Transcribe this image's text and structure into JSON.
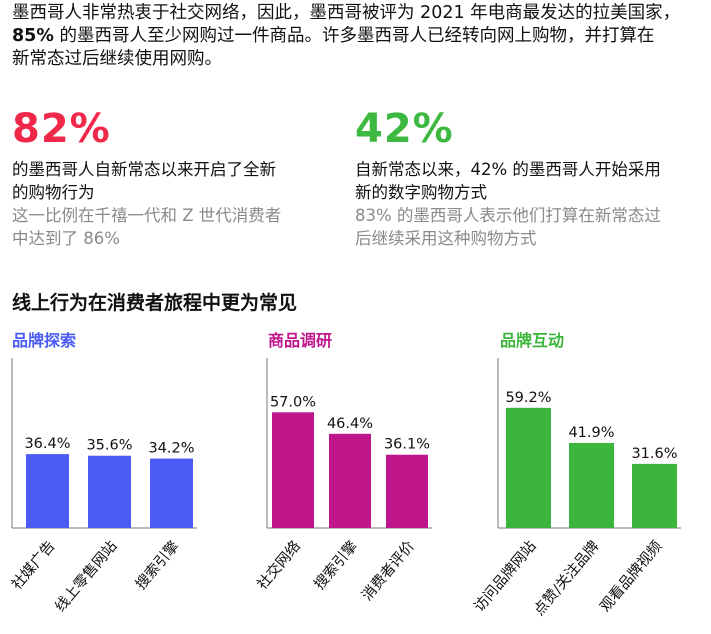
{
  "intro": {
    "line1": "墨西哥人非常热衷于社交网络，因此，墨西哥被评为 2021 年电商最发达的拉美国家，",
    "line2_bold": "85%",
    "line2_rest": " 的墨西哥人至少网购过一件商品。许多墨西哥人已经转向网上购物，并打算在",
    "line3": "新常态过后继续使用网购。"
  },
  "stats": [
    {
      "value": "82%",
      "color": "#f0284a",
      "desc": [
        "的墨西哥人自新常态以来开启了全新",
        "的购物行为"
      ],
      "sub": [
        "这一比例在千禧一代和 Z 世代消费者",
        "中达到了 86%"
      ]
    },
    {
      "value": "42%",
      "color": "#3db840",
      "desc": [
        "自新常态以来，42% 的墨西哥人开始采用",
        "新的数字购物方式"
      ],
      "sub": [
        "83% 的墨西哥人表示他们打算在新常态过",
        "后继续采用这种购物方式"
      ]
    }
  ],
  "section_title": "线上行为在消费者旅程中更为常见",
  "chart_data": [
    {
      "type": "bar",
      "title": "品牌探索",
      "color": "#4a5cf5",
      "categories": [
        "社媒广告",
        "线上零售网站",
        "搜索引擎"
      ],
      "values": [
        36.4,
        35.6,
        34.2
      ],
      "labels": [
        "36.4%",
        "35.6%",
        "34.2%"
      ]
    },
    {
      "type": "bar",
      "title": "商品调研",
      "color": "#c0168b",
      "categories": [
        "社交网络",
        "搜索引擎",
        "消费者评价"
      ],
      "values": [
        57.0,
        46.4,
        36.1
      ],
      "labels": [
        "57.0%",
        "46.4%",
        "36.1%"
      ]
    },
    {
      "type": "bar",
      "title": "品牌互动",
      "color": "#3cb53c",
      "categories": [
        "访问品牌网站",
        "点赞/关注品牌",
        "观看品牌视频"
      ],
      "values": [
        59.2,
        41.9,
        31.6
      ],
      "labels": [
        "59.2%",
        "41.9%",
        "31.6%"
      ]
    }
  ]
}
